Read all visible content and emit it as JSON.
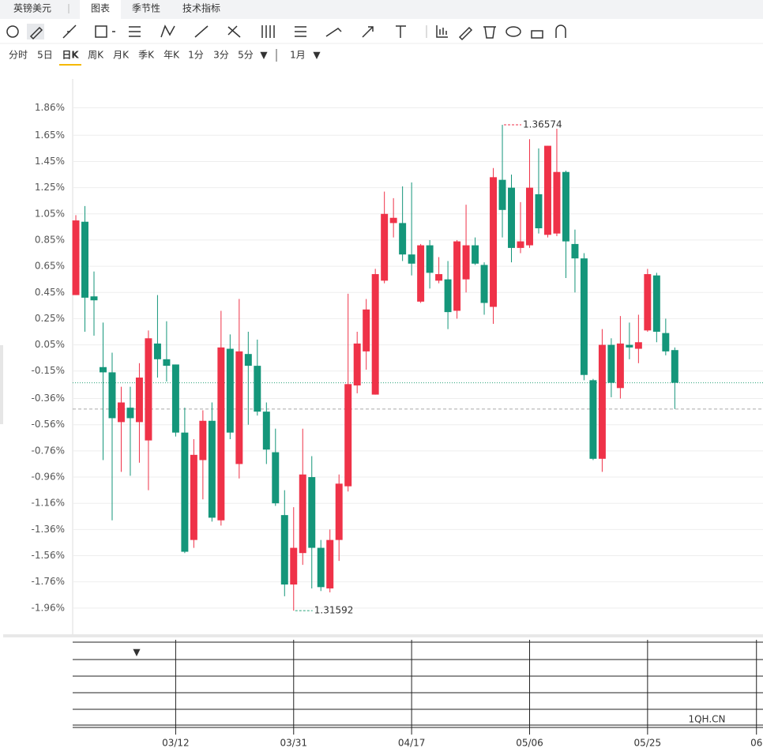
{
  "symbol": "英镑美元",
  "tabs": [
    "图表",
    "季节性",
    "技术指标"
  ],
  "periods": [
    "分时",
    "5日",
    "日K",
    "周K",
    "月K",
    "季K",
    "年K",
    "1分",
    "3分",
    "5分"
  ],
  "range": "1月",
  "watermark": "1QH.CN",
  "chart_data": {
    "type": "candlestick",
    "up_color": "#ef3248",
    "down_color": "#14967a",
    "open": [
      0.43,
      0.99,
      0.42,
      -0.12,
      -0.16,
      -0.54,
      -0.43,
      -0.54,
      -0.68,
      0.06,
      -0.06,
      -0.1,
      -0.62,
      -1.44,
      -0.83,
      -0.53,
      -1.29,
      0.02,
      -0.86,
      -0.02,
      -0.11,
      -0.46,
      -0.77,
      -1.25,
      -1.78,
      -1.54,
      -0.96,
      -1.5,
      -1.81,
      -1.44,
      -1.03,
      -0.26,
      0.0,
      -0.33,
      0.54,
      0.98,
      0.98,
      0.74,
      0.38,
      0.81,
      0.54,
      0.55,
      0.31,
      0.55,
      0.81,
      0.66,
      0.34,
      1.31,
      1.25,
      0.79,
      0.81,
      1.2,
      0.89,
      0.9,
      1.37,
      0.82,
      0.71,
      -0.22,
      -0.82,
      0.05,
      -0.28,
      0.05,
      0.02,
      0.16,
      0.58,
      0.14,
      0.01
    ],
    "high": [
      1.04,
      1.11,
      0.61,
      0.22,
      -0.01,
      -0.27,
      -0.27,
      -0.09,
      0.16,
      0.43,
      0.23,
      -0.1,
      -0.43,
      -0.67,
      -0.45,
      -0.39,
      0.31,
      0.13,
      0.4,
      0.15,
      0.09,
      -0.39,
      -0.59,
      -1.06,
      -1.19,
      -0.59,
      -0.8,
      -1.44,
      -1.36,
      -0.94,
      0.44,
      0.15,
      0.4,
      0.63,
      1.22,
      1.17,
      1.26,
      1.29,
      0.82,
      0.85,
      0.72,
      0.69,
      0.85,
      1.12,
      0.87,
      0.68,
      1.4,
      1.73,
      1.35,
      1.14,
      1.62,
      1.55,
      1.57,
      1.7,
      1.38,
      0.93,
      0.75,
      -0.21,
      0.17,
      0.1,
      0.27,
      0.22,
      0.28,
      0.63,
      0.6,
      0.25,
      0.03
    ],
    "low": [
      0.43,
      0.15,
      0.12,
      -0.83,
      -1.29,
      -0.92,
      -0.95,
      -0.85,
      -1.06,
      -0.2,
      -0.23,
      -0.65,
      -1.54,
      -1.5,
      -1.13,
      -1.3,
      -1.33,
      -0.67,
      -0.97,
      -0.56,
      -0.49,
      -0.86,
      -1.18,
      -1.87,
      -1.98,
      -1.63,
      -1.81,
      -1.83,
      -1.84,
      -1.6,
      -1.07,
      -0.32,
      -0.14,
      -0.33,
      0.52,
      0.87,
      0.69,
      0.58,
      0.37,
      0.48,
      0.52,
      0.17,
      0.25,
      0.45,
      0.66,
      0.28,
      0.21,
      0.87,
      0.68,
      0.75,
      0.79,
      0.9,
      0.87,
      0.88,
      0.56,
      0.45,
      -0.22,
      -0.83,
      -0.92,
      -0.35,
      -0.36,
      -0.06,
      -0.09,
      0.15,
      0.07,
      -0.03,
      -0.44
    ],
    "close": [
      1.0,
      0.41,
      0.39,
      -0.16,
      -0.51,
      -0.39,
      -0.51,
      -0.2,
      0.1,
      -0.06,
      -0.11,
      -0.62,
      -1.53,
      -0.79,
      -0.53,
      -1.27,
      0.03,
      -0.62,
      0.0,
      -0.11,
      -0.46,
      -0.75,
      -1.16,
      -1.78,
      -1.5,
      -0.94,
      -1.5,
      -1.8,
      -1.44,
      -1.01,
      -0.25,
      0.06,
      0.32,
      0.59,
      1.05,
      1.02,
      0.74,
      0.67,
      0.81,
      0.6,
      0.59,
      0.3,
      0.84,
      0.81,
      0.67,
      0.37,
      1.33,
      1.08,
      0.79,
      0.84,
      1.25,
      0.94,
      1.57,
      1.37,
      0.84,
      0.71,
      -0.18,
      -0.82,
      0.05,
      -0.24,
      0.06,
      0.03,
      0.07,
      0.59,
      0.15,
      0.0,
      -0.24
    ],
    "xlim": [
      -0.35,
      75.72
    ],
    "xticks": [
      {
        "value": 11,
        "label": "03/12"
      },
      {
        "value": 24,
        "label": "03/31"
      },
      {
        "value": 37,
        "label": "04/17"
      },
      {
        "value": 50,
        "label": "05/06"
      },
      {
        "value": 63,
        "label": "05/25"
      },
      {
        "value": 75,
        "label": "06"
      }
    ],
    "ylim": [
      -2.16,
      2.08
    ],
    "yticks": [
      {
        "value": 1.86,
        "label": "1.86%"
      },
      {
        "value": 1.65,
        "label": "1.65%"
      },
      {
        "value": 1.45,
        "label": "1.45%"
      },
      {
        "value": 1.25,
        "label": "1.25%"
      },
      {
        "value": 1.05,
        "label": "1.05%"
      },
      {
        "value": 0.85,
        "label": "0.85%"
      },
      {
        "value": 0.65,
        "label": "0.65%"
      },
      {
        "value": 0.45,
        "label": "0.45%"
      },
      {
        "value": 0.25,
        "label": "0.25%"
      },
      {
        "value": 0.05,
        "label": "0.05%"
      },
      {
        "value": -0.15,
        "label": "-0.15%"
      },
      {
        "value": -0.36,
        "label": "-0.36%"
      },
      {
        "value": -0.56,
        "label": "-0.56%"
      },
      {
        "value": -0.76,
        "label": "-0.76%"
      },
      {
        "value": -0.96,
        "label": "-0.96%"
      },
      {
        "value": -1.16,
        "label": "-1.16%"
      },
      {
        "value": -1.36,
        "label": "-1.36%"
      },
      {
        "value": -1.56,
        "label": "-1.56%"
      },
      {
        "value": -1.76,
        "label": "-1.76%"
      },
      {
        "value": -1.96,
        "label": "-1.96%"
      }
    ],
    "grid": true,
    "max_label": "1.36574",
    "min_label": "1.31592",
    "reference_lines": [
      {
        "value": -0.24,
        "color": "#2aa37a",
        "style": "dotted"
      },
      {
        "value": -0.44,
        "color": "#aaaaaa",
        "style": "dashed"
      }
    ]
  }
}
